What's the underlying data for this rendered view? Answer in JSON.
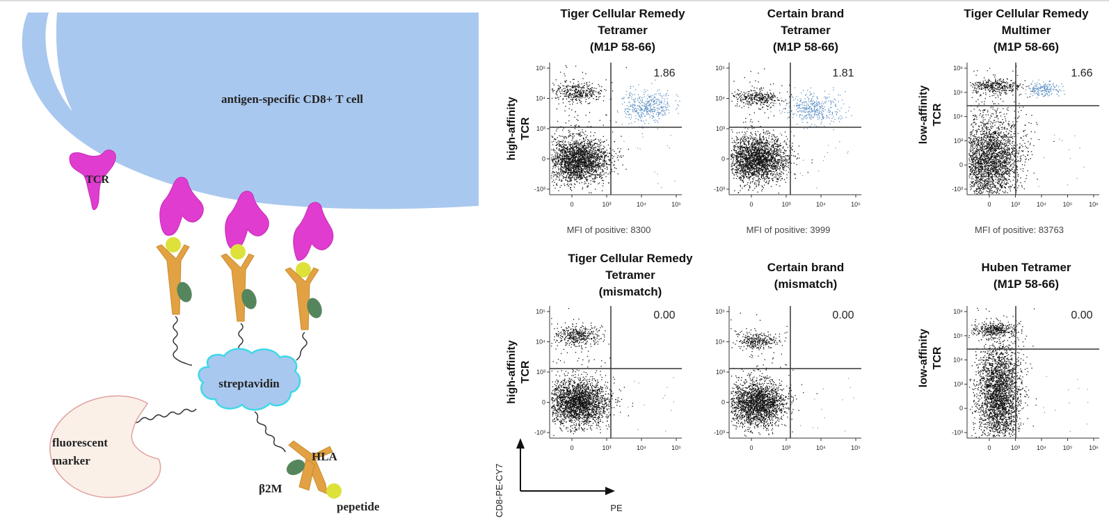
{
  "diagram": {
    "cell_label": "antigen-specific CD8+ T cell",
    "tcr_label": "TCR",
    "streptavidin_label": "streptavidin",
    "fluorescent_label_line1": "fluorescent",
    "fluorescent_label_line2": "marker",
    "hla_label": "HLA",
    "b2m_label": "β2M",
    "peptide_label": "pepetide"
  },
  "panels": [
    {
      "title": [
        "Tiger Cellular Remedy",
        "Tetramer",
        "(M1P 58-66)"
      ],
      "value": "1.86",
      "mfi": "MFI of positive:  8300",
      "ylabel": [
        "high-affinity",
        "TCR"
      ],
      "y_ticks": [
        "10⁵",
        "10⁴",
        "10³",
        "0",
        "-10³"
      ],
      "x_ticks": [
        "0",
        "10³",
        "10⁴",
        "10⁵"
      ]
    },
    {
      "title": [
        "Certain brand",
        "Tetramer",
        "(M1P 58-66)"
      ],
      "value": "1.81",
      "mfi": "MFI of positive:  3999",
      "ylabel": [],
      "y_ticks": [
        "10⁵",
        "10⁴",
        "10³",
        "0",
        "-10³"
      ],
      "x_ticks": [
        "0",
        "10³",
        "10⁴",
        "10⁵"
      ]
    },
    {
      "title": [
        "Tiger Cellular Remedy",
        "Multimer",
        "(M1P 58-66)"
      ],
      "value": "1.66",
      "mfi": "MFI of positive:  83763",
      "ylabel": [
        "low-affinity",
        "TCR"
      ],
      "y_ticks": [
        "10⁶",
        "10⁵",
        "10⁴",
        "10³",
        "0",
        "-10³"
      ],
      "x_ticks": [
        "0",
        "10³",
        "10⁴",
        "10⁵",
        "10⁶"
      ]
    },
    {
      "title": [
        "Tiger Cellular Remedy",
        "Tetramer",
        "(mismatch)"
      ],
      "value": "0.00",
      "mfi": "",
      "ylabel": [
        "high-affinity",
        "TCR"
      ],
      "y_ticks": [
        "10⁵",
        "10⁴",
        "10³",
        "0",
        "-10³"
      ],
      "x_ticks": [
        "0",
        "10³",
        "10⁴",
        "10⁵"
      ]
    },
    {
      "title": [
        "Certain brand",
        "(mismatch)"
      ],
      "value": "0.00",
      "mfi": "",
      "ylabel": [],
      "y_ticks": [
        "10⁵",
        "10⁴",
        "10³",
        "0",
        "-10³"
      ],
      "x_ticks": [
        "0",
        "10³",
        "10⁴",
        "10⁵"
      ]
    },
    {
      "title": [
        "Huben Tetramer",
        "(M1P 58-66)"
      ],
      "value": "0.00",
      "mfi": "",
      "ylabel": [
        "low-affinity",
        "TCR"
      ],
      "y_ticks": [
        "10⁶",
        "10⁵",
        "10⁴",
        "10³",
        "0",
        "-10³"
      ],
      "x_ticks": [
        "0",
        "10³",
        "10⁴",
        "10⁵",
        "10⁶"
      ]
    }
  ],
  "axes_legend": {
    "y": "CD8-PE-CY7",
    "x": "PE"
  }
}
